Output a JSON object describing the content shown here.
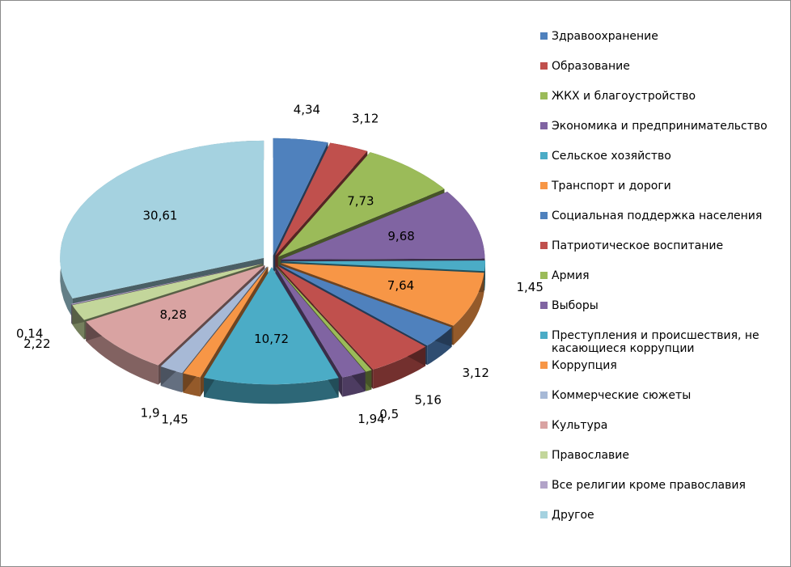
{
  "chart_data": {
    "type": "pie",
    "style": "3d-exploded",
    "legend_position": "right",
    "categories": [
      "Здравоохранение",
      "Образование",
      "ЖКХ и благоустройство",
      "Экономика и предпринимательство",
      "Сельское хозяйство",
      "Транспорт и дороги",
      "Социальная поддержка населения",
      "Патриотическое воспитание",
      "Армия",
      "Выборы",
      "Преступления и происшествия, не касающиеся коррупции",
      "Коррупция",
      "Коммерческие сюжеты",
      "Культура",
      "Православие",
      "Все религии кроме православия",
      "Другое"
    ],
    "values": [
      4.34,
      3.12,
      7.73,
      9.68,
      1.45,
      7.64,
      3.12,
      5.16,
      0.5,
      1.94,
      10.72,
      1.45,
      1.9,
      8.28,
      2.22,
      0.14,
      30.61
    ],
    "value_labels": [
      "4,34",
      "3,12",
      "7,73",
      "9,68",
      "1,45",
      "7,64",
      "3,12",
      "5,16",
      "0,5",
      "1,94",
      "10,72",
      "1,45",
      "1,9",
      "8,28",
      "2,22",
      "0,14",
      "30,61"
    ],
    "legend_lines": [
      [
        "Здравоохранение"
      ],
      [
        "Образование"
      ],
      [
        "ЖКХ и благоустройство"
      ],
      [
        "Экономика и предпринимательство"
      ],
      [
        "Сельское хозяйство"
      ],
      [
        "Транспорт и дороги"
      ],
      [
        "Социальная поддержка населения"
      ],
      [
        "Патриотическое воспитание"
      ],
      [
        "Армия"
      ],
      [
        "Выборы"
      ],
      [
        "Преступления и происшествия, не",
        "касающиеся коррупции"
      ],
      [
        "Коррупция"
      ],
      [
        "Коммерческие сюжеты"
      ],
      [
        "Культура"
      ],
      [
        "Православие"
      ],
      [
        "Все религии кроме православия"
      ],
      [
        "Другое"
      ]
    ],
    "colors": [
      "#4f81bd",
      "#c0504d",
      "#9bbb59",
      "#8064a2",
      "#4bacc6",
      "#f79646",
      "#4f81bd",
      "#c0504d",
      "#9bbb59",
      "#8064a2",
      "#4bacc6",
      "#f79646",
      "#a7b9d6",
      "#d9a3a2",
      "#c3d69b",
      "#b2a3c8",
      "#a5d2e0"
    ]
  }
}
